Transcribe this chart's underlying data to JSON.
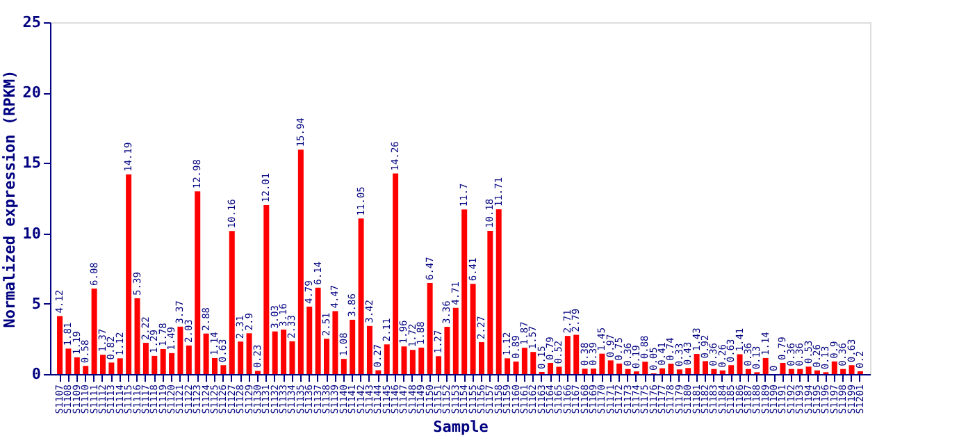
{
  "chart_data": {
    "type": "bar",
    "xlabel": "Sample",
    "ylabel": "Normalized expression (RPKM)",
    "categories": [
      "S1107",
      "S1108",
      "S1109",
      "S1110",
      "S1111",
      "S1112",
      "S1113",
      "S1114",
      "S1115",
      "S1116",
      "S1117",
      "S1118",
      "S1119",
      "S1120",
      "S1121",
      "S1122",
      "S1123",
      "S1124",
      "S1125",
      "S1126",
      "S1127",
      "S1128",
      "S1129",
      "S1130",
      "S1131",
      "S1132",
      "S1133",
      "S1134",
      "S1135",
      "S1136",
      "S1137",
      "S1138",
      "S1139",
      "S1140",
      "S1141",
      "S1142",
      "S1143",
      "S1144",
      "S1145",
      "S1146",
      "S1147",
      "S1148",
      "S1149",
      "S1150",
      "S1151",
      "S1152",
      "S1153",
      "S1154",
      "S1155",
      "S1156",
      "S1157",
      "S1158",
      "S1159",
      "S1160",
      "S1161",
      "S1162",
      "S1163",
      "S1164",
      "S1165",
      "S1166",
      "S1167",
      "S1168",
      "S1169",
      "S1170",
      "S1171",
      "S1172",
      "S1173",
      "S1174",
      "S1175",
      "S1176",
      "S1177",
      "S1178",
      "S1179",
      "S1180",
      "S1181",
      "S1182",
      "S1183",
      "S1184",
      "S1185",
      "S1186",
      "S1187",
      "S1188",
      "S1189",
      "S1190",
      "S1191",
      "S1192",
      "S1193",
      "S1194",
      "S1195",
      "S1196",
      "S1197",
      "S1198",
      "S1199",
      "S1201"
    ],
    "values": [
      4.12,
      1.81,
      1.19,
      0.58,
      6.08,
      1.37,
      0.82,
      1.12,
      14.19,
      5.39,
      2.22,
      1.29,
      1.78,
      1.49,
      3.37,
      2.03,
      12.98,
      2.88,
      1.14,
      0.63,
      10.16,
      2.31,
      2.9,
      0.23,
      12.01,
      3.03,
      3.16,
      2.33,
      15.94,
      4.79,
      6.14,
      2.51,
      4.47,
      1.08,
      3.86,
      11.05,
      3.42,
      0.27,
      2.11,
      14.26,
      1.96,
      1.72,
      1.88,
      6.47,
      1.27,
      3.36,
      4.71,
      11.7,
      6.41,
      2.27,
      10.18,
      11.71,
      1.12,
      0.89,
      1.87,
      1.57,
      0.15,
      0.79,
      0.52,
      2.71,
      2.79,
      0.38,
      0.39,
      1.45,
      0.97,
      0.75,
      0.36,
      0.19,
      0.88,
      0.05,
      0.41,
      0.74,
      0.33,
      0.43,
      1.43,
      0.92,
      0.36,
      0.26,
      0.63,
      1.41,
      0.36,
      0.13,
      1.14,
      0,
      0.79,
      0.36,
      0.36,
      0.53,
      0.26,
      0.13,
      0.9,
      0.36,
      0.63,
      0.2
    ],
    "color": "#ff0000",
    "ylim": [
      0,
      25
    ],
    "yticks": [
      0,
      5,
      10,
      15,
      20,
      25
    ],
    "data_labels": true,
    "grid": false
  }
}
